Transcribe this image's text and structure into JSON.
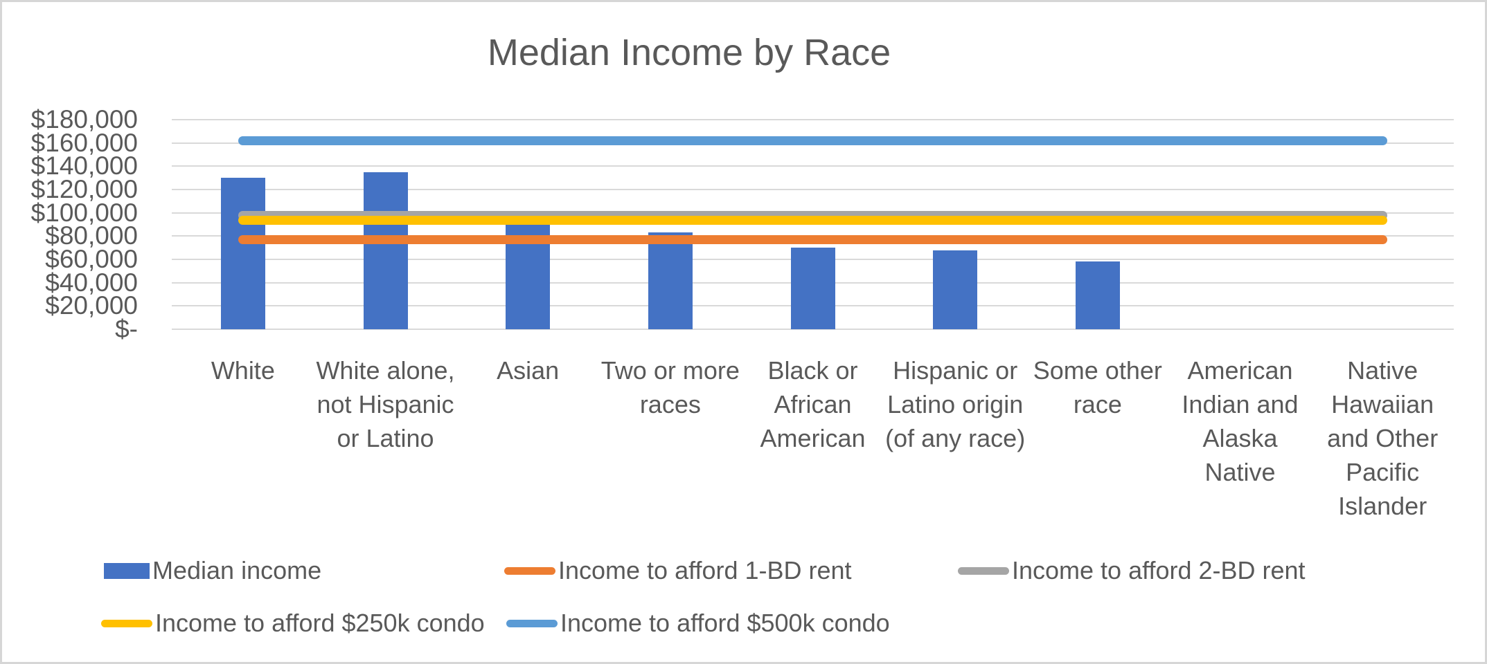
{
  "title": "Median Income by Race",
  "chart_data": {
    "type": "bar",
    "title": "Median Income by Race",
    "xlabel": "",
    "ylabel": "",
    "grid": true,
    "legend_position": "bottom",
    "categories": [
      "White",
      "White alone, not Hispanic or Latino",
      "Asian",
      "Two or more races",
      "Black or African American",
      "Hispanic or Latino origin (of any race)",
      "Some other race",
      "American Indian and Alaska Native",
      "Native Hawaiian and Other Pacific Islander"
    ],
    "bar_series": {
      "name": "Median income",
      "color": "#4472C4",
      "values": [
        130000,
        135000,
        90000,
        83000,
        70000,
        68000,
        58000,
        null,
        null
      ]
    },
    "line_series": [
      {
        "name": "Income to afford 1-BD rent",
        "color": "#ED7D31",
        "value": 77000
      },
      {
        "name": "Income to afford 2-BD rent",
        "color": "#A5A5A5",
        "value": 98000
      },
      {
        "name": "Income to afford $250k condo",
        "color": "#FFC000",
        "value": 93500
      },
      {
        "name": "Income to afford $500k condo",
        "color": "#5B9BD5",
        "value": 162000
      }
    ],
    "y_axis": {
      "min": 0,
      "max": 180000,
      "step": 20000,
      "tick_labels": [
        "$-",
        "$20,000",
        "$40,000",
        "$60,000",
        "$80,000",
        "$100,000",
        "$120,000",
        "$140,000",
        "$160,000",
        "$180,000"
      ]
    },
    "ylim": [
      0,
      180000
    ]
  },
  "legend": {
    "items": [
      {
        "label": "Median income",
        "color": "#4472C4",
        "shape": "bar"
      },
      {
        "label": "Income to afford 1-BD rent",
        "color": "#ED7D31",
        "shape": "line"
      },
      {
        "label": "Income to afford 2-BD rent",
        "color": "#A5A5A5",
        "shape": "line"
      },
      {
        "label": "Income to afford $250k condo",
        "color": "#FFC000",
        "shape": "line"
      },
      {
        "label": "Income to afford $500k condo",
        "color": "#5B9BD5",
        "shape": "line"
      }
    ]
  },
  "colors": {
    "text": "#595959",
    "gridline": "#D9D9D9",
    "frame_border": "#D6D6D6",
    "background": "#FFFFFF"
  }
}
